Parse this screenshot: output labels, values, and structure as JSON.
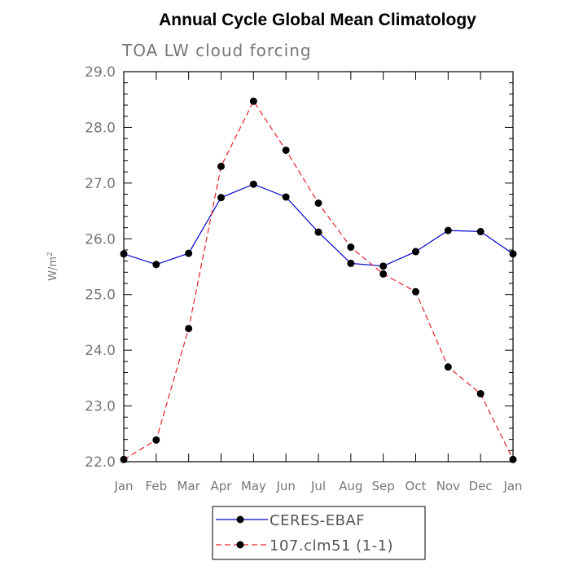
{
  "chart_data": {
    "type": "line",
    "title": "Annual Cycle Global Mean Climatology",
    "subtitle": "TOA LW cloud forcing",
    "xlabel": "",
    "ylabel": "W/m",
    "ylabel_sup": "2",
    "categories": [
      "Jan",
      "Feb",
      "Mar",
      "Apr",
      "May",
      "Jun",
      "Jul",
      "Aug",
      "Sep",
      "Oct",
      "Nov",
      "Dec",
      "Jan"
    ],
    "ylim": [
      22.0,
      29.0
    ],
    "yticks": [
      "22.0",
      "23.0",
      "24.0",
      "25.0",
      "26.0",
      "27.0",
      "28.0",
      "29.0"
    ],
    "grid": false,
    "legend_position": "bottom",
    "series": [
      {
        "name": "CERES-EBAF",
        "color": "#0000cc",
        "dash": "solid",
        "values": [
          25.73,
          25.54,
          25.74,
          26.74,
          26.98,
          26.75,
          26.12,
          25.56,
          25.51,
          25.77,
          26.15,
          26.13,
          25.73
        ]
      },
      {
        "name": "107.clm51 (1-1)",
        "color": "#e8202a",
        "dash": "dashed",
        "values": [
          22.04,
          22.39,
          24.39,
          27.3,
          28.47,
          27.59,
          26.64,
          25.85,
          25.37,
          25.05,
          23.7,
          23.22,
          22.04
        ]
      }
    ]
  }
}
